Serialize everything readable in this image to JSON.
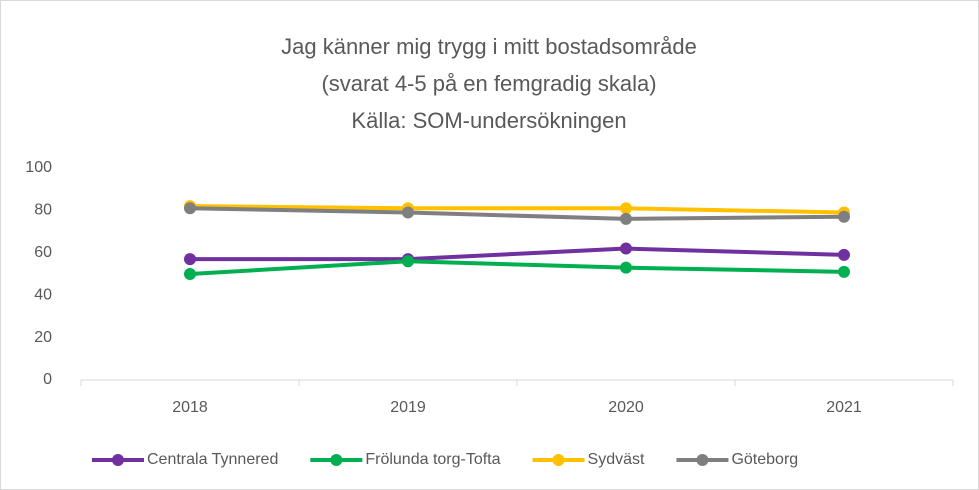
{
  "chart_data": {
    "type": "line",
    "title": [
      "Jag känner mig trygg i mitt bostadsområde",
      "(svarat 4-5 på en femgradig skala)",
      "Källa: SOM-undersökningen"
    ],
    "categories": [
      "2018",
      "2019",
      "2020",
      "2021"
    ],
    "series": [
      {
        "name": "Centrala Tynnered",
        "color": "#7030a0",
        "values": [
          57,
          57,
          62,
          59
        ]
      },
      {
        "name": "Frölunda torg-Tofta",
        "color": "#00b050",
        "values": [
          50,
          56,
          53,
          51
        ]
      },
      {
        "name": "Sydväst",
        "color": "#ffc000",
        "values": [
          82,
          81,
          81,
          79
        ]
      },
      {
        "name": "Göteborg",
        "color": "#7f7f7f",
        "values": [
          81,
          79,
          76,
          77
        ]
      }
    ],
    "ylim": [
      0,
      100
    ],
    "yticks": [
      0,
      20,
      40,
      60,
      80,
      100
    ],
    "grid": false,
    "legend": "bottom"
  }
}
